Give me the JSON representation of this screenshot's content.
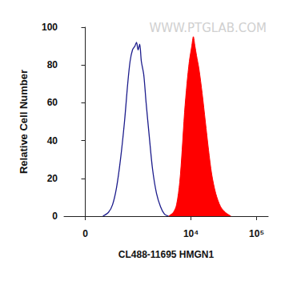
{
  "chart_data": {
    "type": "line",
    "x_label": "CL488-11695 HMGN1",
    "y_label": "Relative Cell Number",
    "annotations": [
      "WWW.PTGLAB.COM"
    ],
    "xlim": [
      -400,
      150000
    ],
    "xticks": [
      0,
      {
        "value": 10000,
        "label": "10⁴"
      },
      {
        "value": 100000,
        "label": "10⁵"
      }
    ],
    "ylim": [
      0,
      100
    ],
    "yticks": [
      0,
      20,
      40,
      60,
      80,
      100
    ],
    "grid": false,
    "series": [
      {
        "type": "line",
        "color": "#1c1c8c",
        "x": [
          323,
          445,
          544,
          652,
          773,
          910,
          1032,
          1132,
          1241,
          1357,
          1440,
          1528,
          1620,
          1719,
          1876,
          2045,
          2294,
          2574,
          2968,
          3422,
          3943,
          4537
        ],
        "values": [
          0,
          2,
          6,
          15,
          30,
          50,
          70,
          82,
          88,
          90,
          92,
          88,
          91,
          82,
          75,
          60,
          42,
          25,
          12,
          5,
          1,
          0
        ]
      },
      {
        "type": "area",
        "color": "#ff0000",
        "x": [
          4537,
          5381,
          6020,
          6736,
          7331,
          7979,
          8676,
          9442,
          10277,
          10866,
          11494,
          12157,
          13223,
          14809,
          16566,
          18530,
          20745,
          23863,
          28257,
          33437,
          40704
        ],
        "values": [
          0,
          2,
          6,
          18,
          35,
          55,
          70,
          82,
          90,
          95,
          90,
          85,
          78,
          65,
          50,
          35,
          22,
          12,
          5,
          2,
          0
        ]
      }
    ]
  }
}
